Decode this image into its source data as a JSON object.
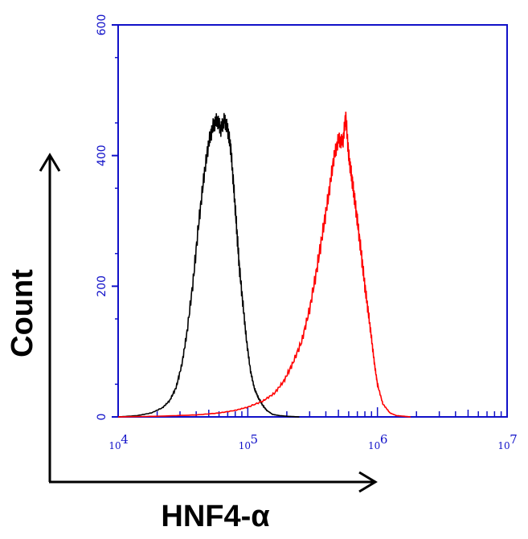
{
  "chart_data": {
    "type": "line",
    "title": "",
    "xlabel": "HNF4-α",
    "ylabel": "Count",
    "x_scale": "log",
    "xlim": [
      10000,
      10000000
    ],
    "ylim": [
      0,
      600
    ],
    "y_ticks": [
      "0",
      "200",
      "400",
      "600"
    ],
    "x_ticks": [
      {
        "base": "10",
        "exp": "4",
        "value": 10000
      },
      {
        "base": "10",
        "exp": "5",
        "value": 100000
      },
      {
        "base": "10",
        "exp": "6",
        "value": 1000000
      },
      {
        "base": "10",
        "exp": "7",
        "value": 10000000
      }
    ],
    "grid": false,
    "legend": "none",
    "axis_color": "#1010c8",
    "series": [
      {
        "color": "#000000",
        "x": [
          10000,
          14000,
          18000,
          22000,
          25000,
          28000,
          31000,
          34000,
          38000,
          42000,
          46000,
          50000,
          54000,
          58000,
          62000,
          66000,
          70000,
          74000,
          78000,
          82000,
          86000,
          92000,
          98000,
          105000,
          112000,
          120000,
          130000,
          140000,
          155000,
          175000,
          200000,
          250000
        ],
        "y": [
          0,
          2,
          6,
          14,
          25,
          45,
          80,
          130,
          210,
          300,
          370,
          420,
          445,
          455,
          440,
          455,
          440,
          410,
          350,
          290,
          230,
          170,
          115,
          70,
          45,
          30,
          18,
          10,
          4,
          2,
          1,
          0
        ]
      },
      {
        "color": "#ff0000",
        "x": [
          10000,
          20000,
          40000,
          60000,
          80000,
          100000,
          130000,
          160000,
          190000,
          220000,
          260000,
          300000,
          340000,
          380000,
          420000,
          460000,
          500000,
          540000,
          570000,
          600000,
          630000,
          660000,
          700000,
          750000,
          800000,
          850000,
          900000,
          950000,
          1000000,
          1100000,
          1250000,
          1400000,
          1600000,
          1800000
        ],
        "y": [
          0,
          1,
          3,
          6,
          10,
          15,
          24,
          36,
          55,
          80,
          115,
          165,
          225,
          285,
          340,
          395,
          425,
          420,
          460,
          400,
          370,
          340,
          300,
          250,
          200,
          160,
          120,
          80,
          50,
          20,
          6,
          2,
          1,
          0
        ]
      }
    ]
  }
}
